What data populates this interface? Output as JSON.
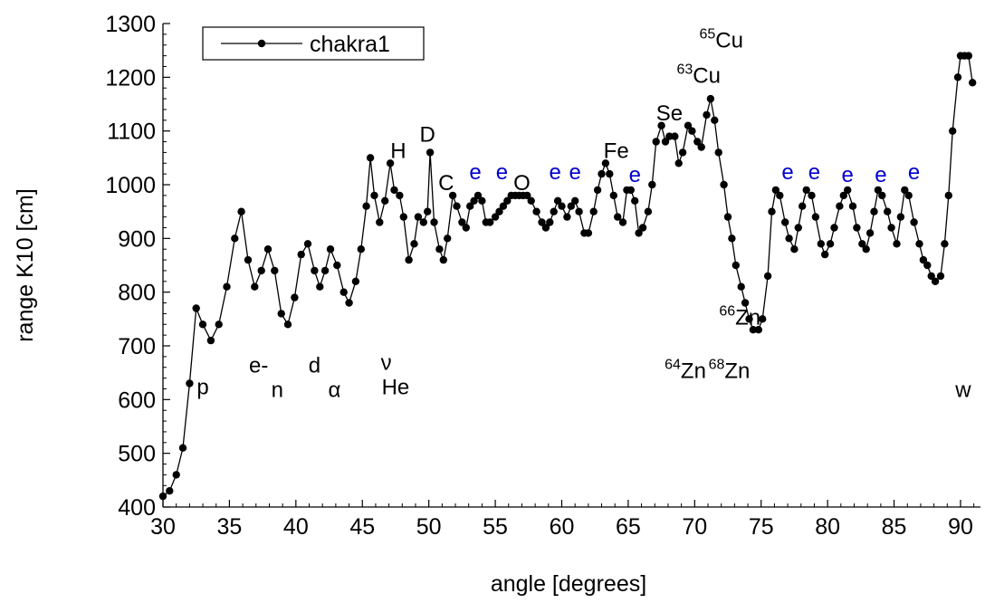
{
  "chart_data": {
    "type": "line",
    "title": "",
    "xlabel": "angle [degrees]",
    "ylabel": "range K10 [cm]",
    "xlim": [
      30,
      91.5
    ],
    "ylim": [
      400,
      1300
    ],
    "xticks": [
      30,
      35,
      40,
      45,
      50,
      55,
      60,
      65,
      70,
      75,
      80,
      85,
      90
    ],
    "yticks": [
      400,
      500,
      600,
      700,
      800,
      900,
      1000,
      1100,
      1200,
      1300
    ],
    "x_tick_labels": [
      "30",
      "35",
      "40",
      "45",
      "50",
      "55",
      "60",
      "65",
      "70",
      "75",
      "80",
      "85",
      "90"
    ],
    "y_tick_labels": [
      "400",
      "500",
      "600",
      "700",
      "800",
      "900",
      "1000",
      "1100",
      "1200",
      "1300"
    ],
    "grid": false,
    "legend": {
      "position": "top-left",
      "entries": [
        "chakra1"
      ]
    },
    "series": [
      {
        "name": "chakra1",
        "color": "#000000",
        "marker": "circle",
        "points": [
          [
            30.0,
            420
          ],
          [
            30.5,
            430
          ],
          [
            31.0,
            460
          ],
          [
            31.5,
            510
          ],
          [
            32.0,
            630
          ],
          [
            32.5,
            770
          ],
          [
            33.0,
            740
          ],
          [
            33.6,
            710
          ],
          [
            34.2,
            740
          ],
          [
            34.8,
            810
          ],
          [
            35.4,
            900
          ],
          [
            35.9,
            950
          ],
          [
            36.4,
            860
          ],
          [
            36.9,
            810
          ],
          [
            37.4,
            840
          ],
          [
            37.9,
            880
          ],
          [
            38.4,
            840
          ],
          [
            38.9,
            760
          ],
          [
            39.4,
            740
          ],
          [
            39.9,
            790
          ],
          [
            40.4,
            870
          ],
          [
            40.9,
            890
          ],
          [
            41.4,
            840
          ],
          [
            41.8,
            810
          ],
          [
            42.2,
            840
          ],
          [
            42.6,
            880
          ],
          [
            43.1,
            850
          ],
          [
            43.6,
            800
          ],
          [
            44.0,
            780
          ],
          [
            44.5,
            820
          ],
          [
            44.9,
            880
          ],
          [
            45.3,
            960
          ],
          [
            45.6,
            1050
          ],
          [
            45.9,
            980
          ],
          [
            46.3,
            930
          ],
          [
            46.7,
            970
          ],
          [
            47.1,
            1040
          ],
          [
            47.4,
            990
          ],
          [
            47.8,
            980
          ],
          [
            48.1,
            940
          ],
          [
            48.5,
            860
          ],
          [
            48.9,
            890
          ],
          [
            49.2,
            940
          ],
          [
            49.6,
            930
          ],
          [
            49.9,
            950
          ],
          [
            50.1,
            1060
          ],
          [
            50.4,
            930
          ],
          [
            50.8,
            880
          ],
          [
            51.1,
            860
          ],
          [
            51.4,
            900
          ],
          [
            51.8,
            980
          ],
          [
            52.1,
            960
          ],
          [
            52.5,
            930
          ],
          [
            52.8,
            920
          ],
          [
            53.1,
            960
          ],
          [
            53.4,
            970
          ],
          [
            53.7,
            980
          ],
          [
            54.0,
            970
          ],
          [
            54.3,
            930
          ],
          [
            54.6,
            930
          ],
          [
            55.0,
            940
          ],
          [
            55.3,
            950
          ],
          [
            55.6,
            960
          ],
          [
            55.9,
            970
          ],
          [
            56.2,
            980
          ],
          [
            56.5,
            980
          ],
          [
            56.8,
            980
          ],
          [
            57.1,
            980
          ],
          [
            57.4,
            980
          ],
          [
            57.7,
            970
          ],
          [
            58.1,
            950
          ],
          [
            58.5,
            930
          ],
          [
            58.8,
            920
          ],
          [
            59.1,
            930
          ],
          [
            59.4,
            950
          ],
          [
            59.7,
            970
          ],
          [
            60.0,
            960
          ],
          [
            60.4,
            940
          ],
          [
            60.7,
            960
          ],
          [
            61.0,
            970
          ],
          [
            61.3,
            950
          ],
          [
            61.7,
            910
          ],
          [
            62.0,
            910
          ],
          [
            62.4,
            950
          ],
          [
            62.7,
            990
          ],
          [
            63.0,
            1020
          ],
          [
            63.3,
            1040
          ],
          [
            63.6,
            1020
          ],
          [
            63.9,
            980
          ],
          [
            64.2,
            940
          ],
          [
            64.6,
            930
          ],
          [
            64.9,
            990
          ],
          [
            65.2,
            990
          ],
          [
            65.5,
            970
          ],
          [
            65.8,
            910
          ],
          [
            66.1,
            920
          ],
          [
            66.5,
            950
          ],
          [
            66.8,
            1000
          ],
          [
            67.1,
            1080
          ],
          [
            67.5,
            1110
          ],
          [
            67.8,
            1080
          ],
          [
            68.1,
            1090
          ],
          [
            68.5,
            1090
          ],
          [
            68.8,
            1040
          ],
          [
            69.1,
            1060
          ],
          [
            69.5,
            1110
          ],
          [
            69.8,
            1100
          ],
          [
            70.2,
            1080
          ],
          [
            70.5,
            1070
          ],
          [
            70.9,
            1130
          ],
          [
            71.2,
            1160
          ],
          [
            71.5,
            1120
          ],
          [
            71.8,
            1060
          ],
          [
            72.2,
            1000
          ],
          [
            72.5,
            940
          ],
          [
            72.8,
            900
          ],
          [
            73.1,
            850
          ],
          [
            73.5,
            810
          ],
          [
            73.8,
            780
          ],
          [
            74.1,
            750
          ],
          [
            74.4,
            730
          ],
          [
            74.8,
            730
          ],
          [
            75.1,
            750
          ],
          [
            75.5,
            830
          ],
          [
            75.8,
            950
          ],
          [
            76.1,
            990
          ],
          [
            76.4,
            980
          ],
          [
            76.8,
            930
          ],
          [
            77.1,
            900
          ],
          [
            77.5,
            880
          ],
          [
            77.8,
            920
          ],
          [
            78.1,
            960
          ],
          [
            78.4,
            990
          ],
          [
            78.8,
            980
          ],
          [
            79.1,
            940
          ],
          [
            79.5,
            890
          ],
          [
            79.8,
            870
          ],
          [
            80.2,
            890
          ],
          [
            80.5,
            920
          ],
          [
            80.9,
            960
          ],
          [
            81.2,
            980
          ],
          [
            81.5,
            990
          ],
          [
            81.9,
            960
          ],
          [
            82.2,
            920
          ],
          [
            82.6,
            890
          ],
          [
            82.9,
            880
          ],
          [
            83.2,
            910
          ],
          [
            83.5,
            950
          ],
          [
            83.8,
            990
          ],
          [
            84.1,
            980
          ],
          [
            84.5,
            950
          ],
          [
            84.8,
            920
          ],
          [
            85.2,
            890
          ],
          [
            85.5,
            940
          ],
          [
            85.8,
            990
          ],
          [
            86.1,
            980
          ],
          [
            86.5,
            930
          ],
          [
            86.9,
            890
          ],
          [
            87.2,
            860
          ],
          [
            87.5,
            850
          ],
          [
            87.8,
            830
          ],
          [
            88.1,
            820
          ],
          [
            88.5,
            830
          ],
          [
            88.8,
            890
          ],
          [
            89.1,
            980
          ],
          [
            89.4,
            1100
          ],
          [
            89.8,
            1200
          ],
          [
            90.0,
            1240
          ],
          [
            90.3,
            1240
          ],
          [
            90.6,
            1240
          ],
          [
            90.9,
            1190
          ]
        ]
      }
    ],
    "annotations": [
      {
        "text": "p",
        "x": 33.0,
        "y": 610,
        "color": "#000000"
      },
      {
        "text": "e-",
        "x": 37.2,
        "y": 650,
        "color": "#000000"
      },
      {
        "text": "n",
        "x": 38.6,
        "y": 605,
        "color": "#000000"
      },
      {
        "text": "d",
        "x": 41.4,
        "y": 650,
        "color": "#000000"
      },
      {
        "text": "α",
        "x": 42.9,
        "y": 605,
        "color": "#000000"
      },
      {
        "text": "ν",
        "x": 46.8,
        "y": 655,
        "color": "#000000"
      },
      {
        "text": "He",
        "x": 47.5,
        "y": 610,
        "color": "#000000"
      },
      {
        "text": "C",
        "x": 51.3,
        "y": 990,
        "color": "#000000"
      },
      {
        "text": "H",
        "x": 47.7,
        "y": 1050,
        "color": "#000000"
      },
      {
        "text": "D",
        "x": 49.9,
        "y": 1080,
        "color": "#000000"
      },
      {
        "text": "O",
        "x": 57.0,
        "y": 990,
        "color": "#000000"
      },
      {
        "text": "Fe",
        "x": 64.1,
        "y": 1050,
        "color": "#000000"
      },
      {
        "text": "Se",
        "x": 68.1,
        "y": 1120,
        "color": "#000000"
      },
      {
        "text": "w",
        "x": 90.2,
        "y": 605,
        "color": "#000000"
      },
      {
        "text": "e",
        "x": 53.5,
        "y": 1010,
        "color": "#0000cc"
      },
      {
        "text": "e",
        "x": 55.5,
        "y": 1010,
        "color": "#0000cc"
      },
      {
        "text": "e",
        "x": 59.5,
        "y": 1010,
        "color": "#0000cc"
      },
      {
        "text": "e",
        "x": 61.0,
        "y": 1010,
        "color": "#0000cc"
      },
      {
        "text": "e",
        "x": 65.5,
        "y": 1005,
        "color": "#0000cc"
      },
      {
        "text": "e",
        "x": 77.0,
        "y": 1010,
        "color": "#0000cc"
      },
      {
        "text": "e",
        "x": 79.0,
        "y": 1010,
        "color": "#0000cc"
      },
      {
        "text": "e",
        "x": 81.5,
        "y": 1005,
        "color": "#0000cc"
      },
      {
        "text": "e",
        "x": 84.0,
        "y": 1005,
        "color": "#0000cc"
      },
      {
        "text": "e",
        "x": 86.5,
        "y": 1010,
        "color": "#0000cc"
      }
    ],
    "isotope_labels": [
      {
        "mass": "65",
        "element": "Cu",
        "x": 72.0,
        "y": 1255
      },
      {
        "mass": "63",
        "element": "Cu",
        "x": 70.3,
        "y": 1190
      },
      {
        "mass": "66",
        "element": "Zn",
        "x": 73.4,
        "y": 740
      },
      {
        "mass": "64",
        "element": "Zn",
        "x": 69.3,
        "y": 640
      },
      {
        "mass": "68",
        "element": "Zn",
        "x": 72.6,
        "y": 640
      }
    ]
  }
}
